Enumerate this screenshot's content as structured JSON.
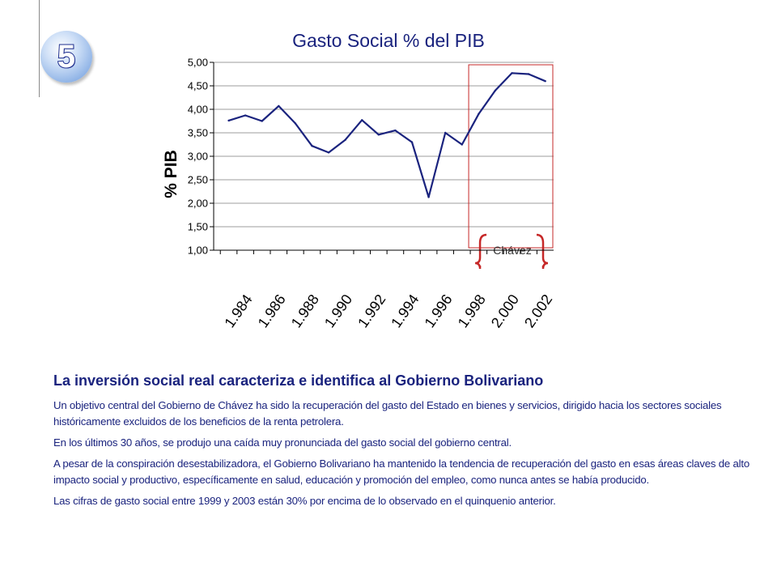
{
  "slide": {
    "number": "5"
  },
  "chart_data": {
    "type": "line",
    "title": "Gasto Social % del PIB",
    "ylabel": "% PIB",
    "xlabel": "",
    "ylim": [
      1.0,
      5.0
    ],
    "y_ticks": [
      "1,00",
      "1,50",
      "2,00",
      "2,50",
      "3,00",
      "3,50",
      "4,00",
      "4,50",
      "5,00"
    ],
    "x_tick_labels": [
      "1.984",
      "1.986",
      "1.988",
      "1.990",
      "1.992",
      "1.994",
      "1.996",
      "1.998",
      "2.000",
      "2.002"
    ],
    "x": [
      1984,
      1985,
      1986,
      1987,
      1988,
      1989,
      1990,
      1991,
      1992,
      1993,
      1994,
      1995,
      1996,
      1997,
      1998,
      1999,
      2000,
      2001,
      2002,
      2003
    ],
    "series": [
      {
        "values": [
          3.76,
          3.87,
          3.75,
          4.07,
          3.7,
          3.22,
          3.08,
          3.35,
          3.77,
          3.46,
          3.55,
          3.3,
          2.13,
          3.5,
          3.25,
          3.9,
          4.4,
          4.77,
          4.75,
          4.6
        ],
        "color": "#1a237e"
      }
    ],
    "grid": true,
    "annotation": {
      "label": "Chávez",
      "from_x": 1998.5,
      "color": "#c62828"
    }
  },
  "text": {
    "headline": "La inversión social real caracteriza e identifica al Gobierno Bolivariano",
    "paragraphs": [
      "Un objetivo central del Gobierno de Chávez ha sido la recuperación del gasto del Estado en bienes y servicios, dirigido hacia los sectores sociales históricamente excluidos de los beneficios de la renta petrolera.",
      "En los últimos 30 años, se produjo una caída muy pronunciada del gasto social del gobierno central.",
      "A  pesar de la conspiración desestabilizadora, el Gobierno Bolivariano ha mantenido la tendencia de recuperación del gasto en esas áreas claves de alto impacto social y productivo, específicamente en salud, educación y promoción del empleo, como nunca antes se había producido.",
      "Las cifras de gasto social entre 1999 y 2003 están 30% por encima de lo observado en el quinquenio anterior."
    ]
  }
}
